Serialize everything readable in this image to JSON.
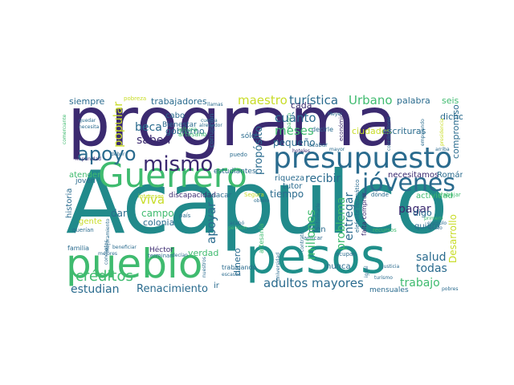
{
  "colors": {
    "background": "#ffffff",
    "c1": "#3b2a70",
    "c2": "#218a8b",
    "c3": "#2a6b8e",
    "c4": "#3fbb6f",
    "c5": "#c8dc28",
    "c6": "#1f8f8a"
  },
  "words": {
    "programa": "programa",
    "acapulco": "Acapulco",
    "pesos": "pesos",
    "pueblo": "pueblo",
    "presupuesto": "presupuesto",
    "guerrero": "Guerrero",
    "jovenes": "jóvenes",
    "mismo": "mismo",
    "apoyo": "apoyo",
    "maestro": "maestro",
    "turistica": "turística",
    "urbano": "Urbano",
    "palabra": "palabra",
    "seis": "seis",
    "siempre": "siempre",
    "trabajadores": "trabajadores",
    "cuanto": "cuánto",
    "meses": "meses",
    "proposito": "propósito",
    "pequeno": "pequeño",
    "popular": "popular",
    "beca": "beca",
    "saben": "saben",
    "bienestar": "Bienestar",
    "gobierno": "gobierno",
    "cabo": "cabo",
    "recibir": "recibir",
    "riqueza": "riqueza",
    "tutor": "tutor",
    "tiempo": "tiempo",
    "necesitamos": "necesitamos",
    "roman": "Román",
    "actividad": "actividad",
    "pagar": "pagar",
    "entregar": "entregar",
    "problema": "problema",
    "millones": "millones",
    "digo": "digo",
    "quiero": "quiero",
    "todas": "todas",
    "salud": "salud",
    "desarrollo": "Desarrollo",
    "trabajo": "trabajo",
    "adultos_mayores": "adultos mayores",
    "nunca": "nunca",
    "creditos": "créditos",
    "estudian": "estudian",
    "renacimiento": "Renacimiento",
    "viva": "viva",
    "campo": "campo",
    "apoyar": "apoyar",
    "colonia": "colonia",
    "dar": "dar",
    "verdad": "verdad",
    "dinero": "dinero",
    "discapacidad": "discapacidad",
    "atender": "atender",
    "historia": "historia",
    "gente": "gente",
    "dicho": "dicho",
    "compromiso": "compromiso",
    "ciudades": "ciudades",
    "escrituras": "escrituras",
    "cada": "cada",
    "sacar": "sacar",
    "estudiantes": "estudiantes",
    "pais": "país",
    "hector": "Héctor",
    "intereses": "intereses",
    "joven": "joven",
    "familia": "familia",
    "ocupan": "ocupan",
    "trabajando": "trabajando",
    "recursos": "recursos",
    "mensuales": "mensuales",
    "llamas": "llamas",
    "cuenta": "cuenta",
    "alrededor": "alrededor",
    "corrupcion": "corrupción",
    "solo": "sólo",
    "puedo": "puedo",
    "artesano": "artesano",
    "altura": "altura",
    "aplicar": "aplicar",
    "bien": "bien",
    "artesania": "artesanía",
    "elefante_reumatico": "elefante reumático",
    "falta_comprar": "falta comprar",
    "donde": "dónde",
    "trabajar": "trabajar",
    "economico": "económico",
    "decirle": "decirle",
    "acabar": "acabar",
    "arriba": "arriba",
    "pobreza": "pobreza",
    "necesita": "necesita",
    "comerciante": "comerciante",
    "quedar": "quedar",
    "deber": "deber",
    "segura": "Segura",
    "nuestros": "nuestros",
    "universidad": "universidad",
    "terminan": "terminan",
    "decian": "decían",
    "ir": "ir",
    "justicia": "justicia",
    "turismo": "turismo",
    "pobres": "pobres",
    "gusto": "gusto",
    "primero": "primero",
    "ejemplo": "ejemplo",
    "mejores": "mejores",
    "querian": "querían",
    "mejoramiento": "Mejoramiento",
    "impunidad": "impunidad",
    "beneficiar": "beneficiar",
    "conceptos": "conceptos",
    "hoteles": "hoteles",
    "mayor": "mayor",
    "meyer": "Meyer",
    "contrato": "contrato",
    "escasos": "escasos",
    "acabo": "acabó",
    "pension": "pensión",
    "basico": "básico",
    "igual": "igual",
    "presidencia": "presidencia",
    "empujando": "empujando",
    "coordinadores": "coordinadores",
    "informarle": "informarle",
    "obrero": "obrero"
  }
}
